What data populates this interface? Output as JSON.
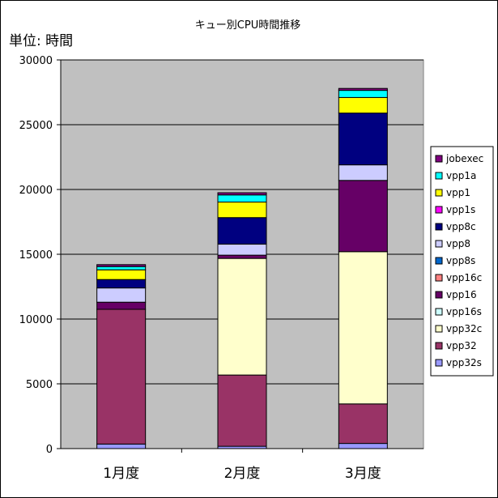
{
  "chart_data": {
    "type": "bar",
    "stacked": true,
    "title": "キュー別CPU時間推移",
    "unit_label": "単位: 時間",
    "categories": [
      "1月度",
      "2月度",
      "3月度"
    ],
    "ylim": [
      0,
      30000
    ],
    "yticks": [
      0,
      5000,
      10000,
      15000,
      20000,
      25000,
      30000
    ],
    "grid": true,
    "legend_position": "right",
    "series": [
      {
        "name": "vpp32s",
        "color": "#9999ff",
        "values": [
          350,
          180,
          400
        ]
      },
      {
        "name": "vpp32",
        "color": "#993366",
        "values": [
          10400,
          5500,
          3050
        ]
      },
      {
        "name": "vpp32c",
        "color": "#ffffcc",
        "values": [
          0,
          9000,
          11750
        ]
      },
      {
        "name": "vpp16s",
        "color": "#ccffff",
        "values": [
          0,
          0,
          0
        ]
      },
      {
        "name": "vpp16",
        "color": "#660066",
        "values": [
          550,
          250,
          5500
        ]
      },
      {
        "name": "vpp16c",
        "color": "#ff8080",
        "values": [
          0,
          0,
          0
        ]
      },
      {
        "name": "vpp8s",
        "color": "#0066cc",
        "values": [
          0,
          0,
          0
        ]
      },
      {
        "name": "vpp8",
        "color": "#ccccff",
        "values": [
          1100,
          850,
          1200
        ]
      },
      {
        "name": "vpp8c",
        "color": "#000080",
        "values": [
          650,
          2050,
          4000
        ]
      },
      {
        "name": "vpp1s",
        "color": "#ff00ff",
        "values": [
          0,
          0,
          0
        ]
      },
      {
        "name": "vpp1",
        "color": "#ffff00",
        "values": [
          750,
          1200,
          1200
        ]
      },
      {
        "name": "vpp1a",
        "color": "#00ffff",
        "values": [
          250,
          550,
          550
        ]
      },
      {
        "name": "jobexec",
        "color": "#800080",
        "values": [
          150,
          170,
          150
        ]
      }
    ]
  }
}
